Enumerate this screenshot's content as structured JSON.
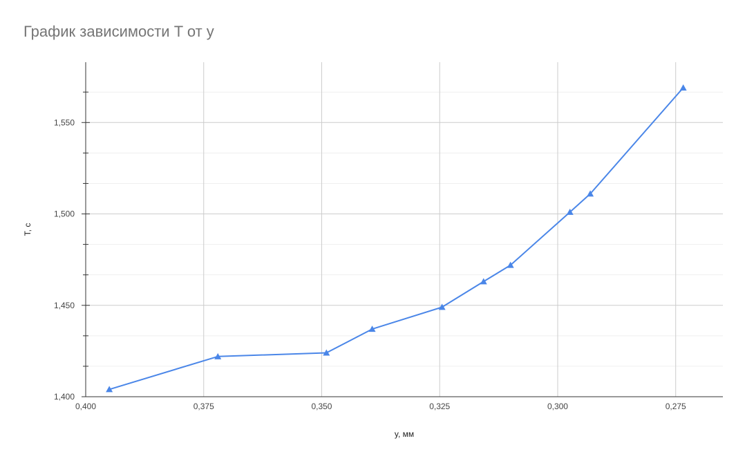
{
  "chart_data": {
    "type": "line",
    "title": "График зависимости T от y",
    "xlabel": "y, мм",
    "ylabel": "T, c",
    "x_reversed": true,
    "xlim": [
      0.4,
      0.265
    ],
    "ylim": [
      1.4,
      1.583
    ],
    "x_ticks": [
      0.4,
      0.375,
      0.35,
      0.325,
      0.3,
      0.275
    ],
    "x_tick_labels": [
      "0,400",
      "0,375",
      "0,350",
      "0,325",
      "0,300",
      "0,275"
    ],
    "y_ticks": [
      1.4,
      1.45,
      1.5,
      1.55
    ],
    "y_tick_labels": [
      "1,400",
      "1,450",
      "1,500",
      "1,550"
    ],
    "grid": true,
    "legend": "none",
    "series": [
      {
        "color": "#4a86e8",
        "marker": "triangle",
        "x": [
          0.395,
          0.372,
          0.349,
          0.3393,
          0.3245,
          0.3157,
          0.31,
          0.2974,
          0.2931,
          0.2734
        ],
        "y": [
          1.404,
          1.422,
          1.424,
          1.437,
          1.449,
          1.463,
          1.472,
          1.501,
          1.511,
          1.569
        ]
      }
    ]
  }
}
